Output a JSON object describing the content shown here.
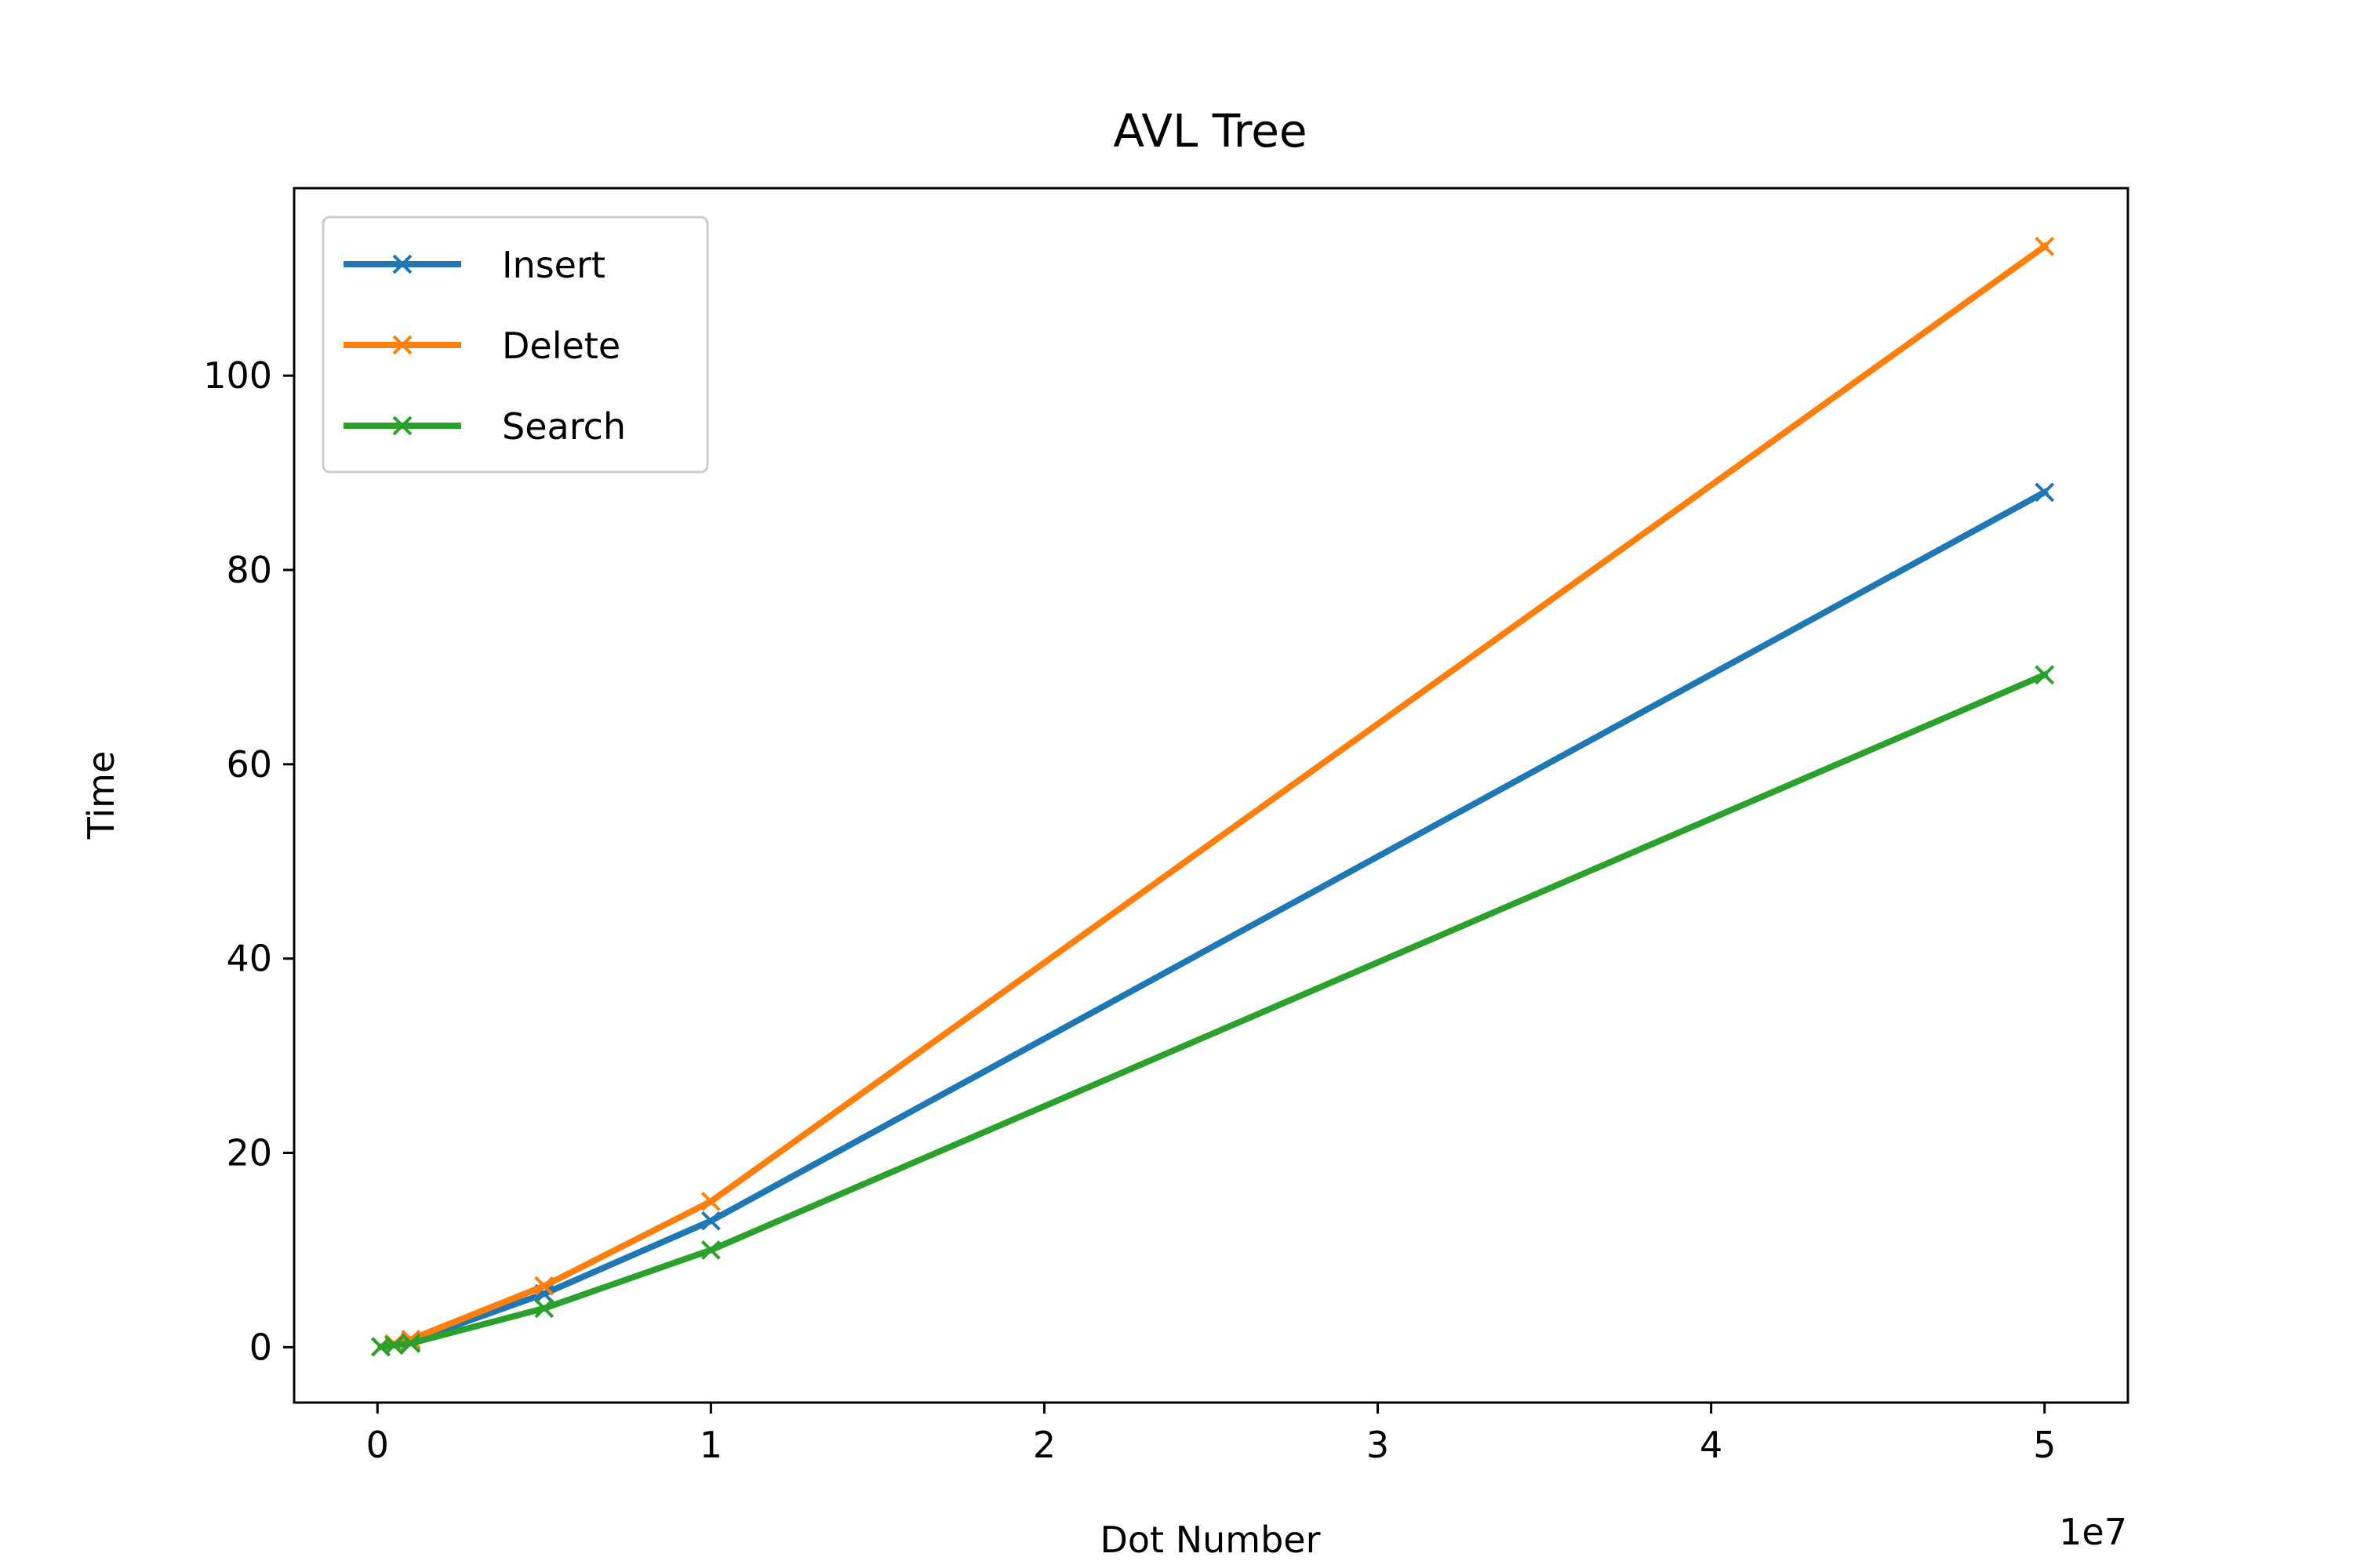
{
  "chart_data": {
    "type": "line",
    "title": "AVL Tree",
    "xlabel": "Dot Number",
    "ylabel": "Time",
    "x_offset_label": "1e7",
    "xlim": [
      -0.25,
      5.25
    ],
    "ylim": [
      -5.7,
      119.3
    ],
    "x_ticks": [
      0,
      1,
      2,
      3,
      4,
      5
    ],
    "x_tick_labels": [
      "0",
      "1",
      "2",
      "3",
      "4",
      "5"
    ],
    "y_ticks": [
      0,
      20,
      40,
      60,
      80,
      100
    ],
    "y_tick_labels": [
      "0",
      "20",
      "40",
      "60",
      "80",
      "100"
    ],
    "x": [
      0.01,
      0.05,
      0.1,
      0.5,
      1,
      5
    ],
    "x_unit_note": "x values in units of 1e7",
    "legend_position": "upper-left",
    "grid": false,
    "marker": "x",
    "series": [
      {
        "name": "Insert",
        "color": "#1f77b4",
        "values": [
          0.05,
          0.3,
          0.6,
          5.5,
          13,
          88
        ]
      },
      {
        "name": "Delete",
        "color": "#ff7f0e",
        "values": [
          0.05,
          0.35,
          0.8,
          6.3,
          15,
          113.3
        ]
      },
      {
        "name": "Search",
        "color": "#2ca02c",
        "values": [
          0.03,
          0.2,
          0.4,
          4,
          10,
          69.2
        ]
      }
    ]
  }
}
